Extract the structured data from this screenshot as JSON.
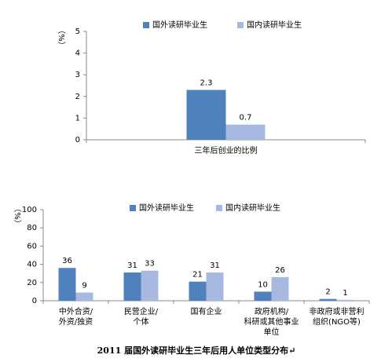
{
  "chart_data": [
    {
      "type": "bar",
      "y_label": "（%）",
      "categories": [
        [
          "三年后创业的比例"
        ]
      ],
      "series": [
        {
          "name": "国外读研毕业生",
          "color": "#4f81bd",
          "values": [
            2.3
          ]
        },
        {
          "name": "国内读研毕业生",
          "color": "#a7b9e0",
          "values": [
            0.7
          ]
        }
      ],
      "ylim": [
        0,
        5
      ],
      "yticks": [
        0,
        1,
        2,
        3,
        4,
        5
      ]
    },
    {
      "type": "bar",
      "y_label": "（%）",
      "categories": [
        [
          "中外合资/",
          "外资/独资"
        ],
        [
          "民营企业/",
          "个体"
        ],
        [
          "国有企业"
        ],
        [
          "政府机构/",
          "科研或其他事业",
          "单位"
        ],
        [
          "非政府或非营利",
          "组织(NGO等)"
        ]
      ],
      "series": [
        {
          "name": "国外读研毕业生",
          "color": "#4f81bd",
          "values": [
            36,
            31,
            21,
            10,
            2
          ]
        },
        {
          "name": "国内读研毕业生",
          "color": "#a7b9e0",
          "values": [
            9,
            33,
            31,
            26,
            1
          ]
        }
      ],
      "ylim": [
        0,
        100
      ],
      "yticks": [
        0,
        20,
        40,
        60,
        80,
        100
      ]
    }
  ],
  "caption": "2011 届国外读研毕业生三年后用人单位类型分布↵"
}
